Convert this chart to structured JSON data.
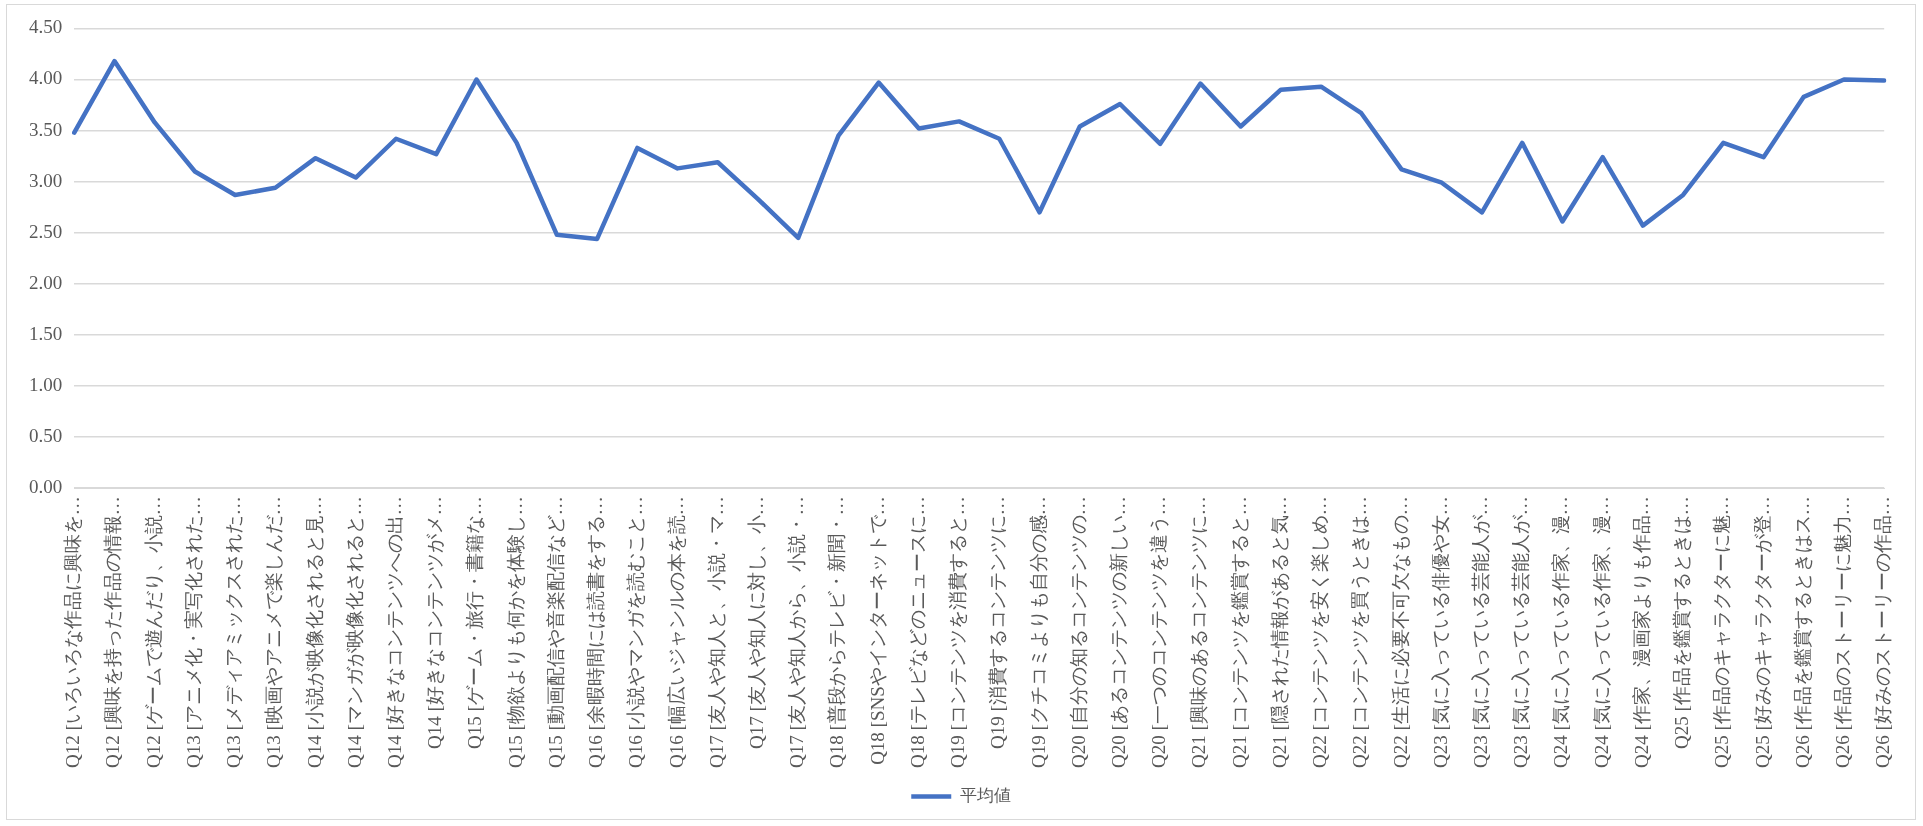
{
  "chart_data": {
    "type": "line",
    "categories": [
      "Q12 [いろいろな作品に興味を…",
      "Q12 [興味を持った作品の情報…",
      "Q12 [ゲームで遊んだり、小説…",
      "Q13 [アニメ化・実写化された…",
      "Q13 [メディアミックスされた…",
      "Q13 [映画やアニメで楽しんだ…",
      "Q14 [小説が映像化されると見…",
      "Q14 [マンガが映像化されると…",
      "Q14 [好きなコンテンツへの出…",
      "Q14 [好きなコンテンツがメ…",
      "Q15 [ゲーム・旅行・書籍な…",
      "Q15 [物欲よりも何かを体験し…",
      "Q15 [動画配信や音楽配信など…",
      "Q16 [余暇時間には読書をする…",
      "Q16 [小説やマンガを読むこと…",
      "Q16 [幅広いジャンルの本を読…",
      "Q17 [友人や知人と、小説・マ…",
      "Q17 [友人や知人に対し、小…",
      "Q17 [友人や知人から、小説・…",
      "Q18 [普段からテレビ・新聞・…",
      "Q18 [SNSやインターネットで…",
      "Q18 [テレビなどのニュースに…",
      "Q19 [コンテンツを消費すると…",
      "Q19 [消費するコンテンツに…",
      "Q19 [クチコミよりも自分の感…",
      "Q20 [自分の知るコンテンツの…",
      "Q20 [あるコンテンツの新しい…",
      "Q20 [一つのコンテンツを違う…",
      "Q21 [興味のあるコンテンツに…",
      "Q21 [コンテンツを鑑賞すると…",
      "Q21 [隠された情報があると気…",
      "Q22 [コンテンツを安く楽しめ…",
      "Q22 [コンテンツを買うときは…",
      "Q22 [生活に必要不可欠なもの…",
      "Q23 [気に入っている俳優や女…",
      "Q23 [気に入っている芸能人が…",
      "Q23 [気に入っている芸能人が…",
      "Q24 [気に入っている作家、漫…",
      "Q24 [気に入っている作家、漫…",
      "Q24 [作家、漫画家よりも作品…",
      "Q25 [作品を鑑賞するときは…",
      "Q25 [作品のキャラクターに魅…",
      "Q25 [好みのキャラクターが登…",
      "Q26 [作品を鑑賞するときはス…",
      "Q26 [作品のストーリーに魅力…",
      "Q26 [好みのストーリーの作品…"
    ],
    "series": [
      {
        "name": "平均値",
        "color": "#4472c4",
        "values": [
          3.48,
          4.18,
          3.58,
          3.1,
          2.87,
          2.94,
          3.23,
          3.04,
          3.42,
          3.27,
          4.0,
          3.38,
          2.48,
          2.44,
          3.33,
          3.13,
          3.19,
          2.83,
          2.45,
          3.45,
          3.97,
          3.52,
          3.59,
          3.42,
          2.7,
          3.54,
          3.76,
          3.37,
          3.96,
          3.54,
          3.9,
          3.93,
          3.67,
          3.12,
          2.99,
          2.7,
          3.38,
          2.61,
          3.24,
          2.57,
          2.87,
          3.38,
          3.24,
          3.83,
          4.0,
          3.99
        ]
      }
    ],
    "ylim": [
      0,
      4.5
    ],
    "yticks": [
      {
        "value": 0,
        "label": "0.00"
      },
      {
        "value": 0.5,
        "label": "0.50"
      },
      {
        "value": 1,
        "label": "1.00"
      },
      {
        "value": 1.5,
        "label": "1.50"
      },
      {
        "value": 2,
        "label": "2.00"
      },
      {
        "value": 2.5,
        "label": "2.50"
      },
      {
        "value": 3,
        "label": "3.00"
      },
      {
        "value": 3.5,
        "label": "3.50"
      },
      {
        "value": 4,
        "label": "4.00"
      },
      {
        "value": 4.5,
        "label": "4.50"
      }
    ],
    "grid": "y",
    "legend": "bottom",
    "marker": "none",
    "line_style": "solid"
  }
}
